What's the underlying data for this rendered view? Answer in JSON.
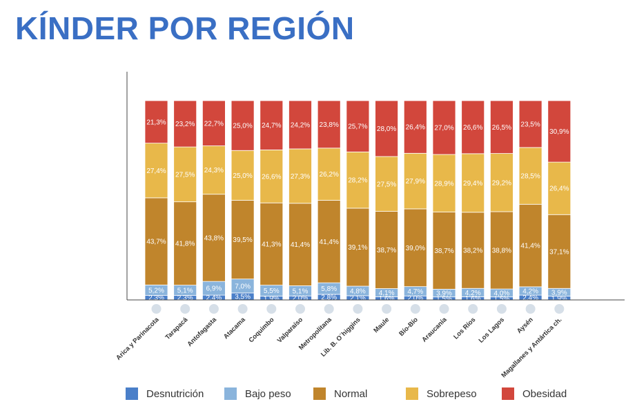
{
  "title": "KÍNDER POR REGIÓN",
  "chart_data": {
    "type": "bar",
    "stacked": true,
    "title": "KÍNDER POR REGIÓN",
    "xlabel": "",
    "ylabel": "",
    "ylim": [
      0,
      100
    ],
    "grid": false,
    "legend_position": "bottom",
    "categories": [
      "Arica y Parinacota",
      "Tarapacá",
      "Antofagasta",
      "Atacama",
      "Coquimbo",
      "Valparaíso",
      "Metropolitana",
      "Lib. B. O´higgins",
      "Maule",
      "Bío-Bío",
      "Araucanía",
      "Los Ríos",
      "Los Lagos",
      "Aysén",
      "Magallanes y Antártica ch."
    ],
    "series": [
      {
        "name": "Desnutrición",
        "color": "#4a7fc9",
        "values": [
          2.3,
          2.3,
          2.4,
          3.5,
          1.9,
          2.0,
          2.8,
          2.1,
          1.6,
          2.0,
          1.5,
          1.6,
          1.5,
          2.4,
          1.9
        ],
        "labels": [
          "2,3%",
          "2,3%",
          "2,4%",
          "3,5%",
          "1,9%",
          "2,0%",
          "2,8%",
          "2,1%",
          "1,6%",
          "2,0%",
          "1,5%",
          "1,6%",
          "1,5%",
          "2,4%",
          "1,9%"
        ]
      },
      {
        "name": "Bajo peso",
        "color": "#8ab4dc",
        "values": [
          5.2,
          5.1,
          6.9,
          7.0,
          5.5,
          5.1,
          5.8,
          4.8,
          4.1,
          4.7,
          3.9,
          4.2,
          4.0,
          4.2,
          3.9
        ],
        "labels": [
          "5,2%",
          "5,1%",
          "6,9%",
          "7,0%",
          "5,5%",
          "5,1%",
          "5,8%",
          "4,8%",
          "4,1%",
          "4,7%",
          "3,9%",
          "4,2%",
          "4,0%",
          "4,2%",
          "3,9%"
        ]
      },
      {
        "name": "Normal",
        "color": "#c0852c",
        "values": [
          43.7,
          41.8,
          43.8,
          39.5,
          41.3,
          41.4,
          41.4,
          39.1,
          38.7,
          39.0,
          38.7,
          38.2,
          38.8,
          41.4,
          37.1
        ],
        "labels": [
          "43,7%",
          "41,8%",
          "43,8%",
          "39,5%",
          "41,3%",
          "41,4%",
          "41,4%",
          "39,1%",
          "38,7%",
          "39,0%",
          "38,7%",
          "38,2%",
          "38,8%",
          "41,4%",
          "37,1%"
        ]
      },
      {
        "name": "Sobrepeso",
        "color": "#e8b84a",
        "values": [
          27.4,
          27.5,
          24.3,
          25.0,
          26.6,
          27.3,
          26.2,
          28.2,
          27.5,
          27.9,
          28.9,
          29.4,
          29.2,
          28.5,
          26.4
        ],
        "labels": [
          "27,4%",
          "27,5%",
          "24,3%",
          "25,0%",
          "26,6%",
          "27,3%",
          "26,2%",
          "28,2%",
          "27,5%",
          "27,9%",
          "28,9%",
          "29,4%",
          "29,2%",
          "28,5%",
          "26,4%"
        ]
      },
      {
        "name": "Obesidad",
        "color": "#d2473c",
        "values": [
          21.3,
          23.2,
          22.7,
          25.0,
          24.7,
          24.2,
          23.8,
          25.7,
          28.0,
          26.4,
          27.0,
          26.6,
          26.5,
          23.5,
          30.9
        ],
        "labels": [
          "21,3%",
          "23,2%",
          "22,7%",
          "25,0%",
          "24,7%",
          "24,2%",
          "23,8%",
          "25,7%",
          "28,0%",
          "26,4%",
          "27,0%",
          "26,6%",
          "26,5%",
          "23,5%",
          "30,9%"
        ]
      }
    ]
  }
}
